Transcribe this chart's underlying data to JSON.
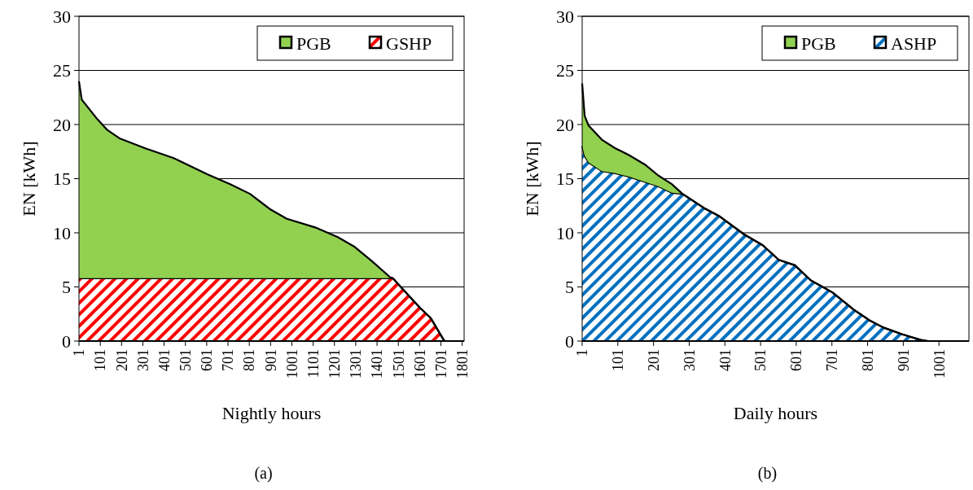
{
  "chart_data": [
    {
      "type": "area",
      "title": "(a)",
      "xlabel": "Nightly hours",
      "ylabel": "EN [kWh]",
      "stacked": true,
      "x": [
        1,
        14,
        87,
        134,
        194,
        313,
        446,
        605,
        711,
        804,
        897,
        977,
        1110,
        1216,
        1296,
        1376,
        1462,
        1475,
        1508,
        1601,
        1654,
        1714,
        1720,
        1810
      ],
      "series": [
        {
          "name": "GSHP",
          "color": "#ff0000",
          "values": [
            5.8,
            5.8,
            5.8,
            5.8,
            5.8,
            5.8,
            5.8,
            5.8,
            5.8,
            5.8,
            5.8,
            5.8,
            5.8,
            5.8,
            5.8,
            5.8,
            5.8,
            5.8,
            5.1,
            3.1,
            2.1,
            0.1,
            0,
            0
          ]
        },
        {
          "name": "PGB",
          "color": "#92d050",
          "values": [
            18.2,
            16.5,
            14.7,
            13.7,
            12.9,
            12.0,
            11.1,
            9.6,
            8.7,
            7.8,
            6.4,
            5.5,
            4.7,
            3.8,
            2.9,
            1.6,
            0.1,
            0,
            0,
            0,
            0,
            0,
            0,
            0
          ]
        }
      ],
      "xlim": [
        1,
        1810
      ],
      "xticks": [
        1,
        101,
        201,
        301,
        401,
        501,
        601,
        701,
        801,
        901,
        1001,
        1101,
        1201,
        1301,
        1401,
        1501,
        1601,
        1701,
        1801
      ],
      "ylim": [
        0,
        30
      ],
      "yticks": [
        0,
        5,
        10,
        15,
        20,
        25,
        30
      ],
      "grid": "y",
      "legend": "top right"
    },
    {
      "type": "area",
      "title": "(b)",
      "xlabel": "Daily hours",
      "ylabel": "EN [kWh]",
      "stacked": true,
      "x": [
        1,
        8,
        19,
        56,
        94,
        131,
        177,
        214,
        252,
        282,
        342,
        387,
        455,
        507,
        552,
        597,
        642,
        702,
        762,
        807,
        845,
        900,
        950,
        970,
        1085
      ],
      "series": [
        {
          "name": "ASHP",
          "color": "#0070c0",
          "values": [
            18.0,
            17.1,
            16.5,
            15.7,
            15.5,
            15.2,
            14.7,
            14.3,
            13.7,
            13.6,
            12.3,
            11.5,
            9.85,
            8.85,
            7.5,
            7.0,
            5.6,
            4.5,
            2.9,
            1.9,
            1.25,
            0.6,
            0.1,
            0,
            0
          ]
        },
        {
          "name": "PGB",
          "color": "#92d050",
          "values": [
            5.8,
            3.7,
            3.4,
            2.9,
            2.3,
            2.0,
            1.6,
            1.0,
            0.8,
            0,
            0,
            0,
            0,
            0,
            0,
            0,
            0,
            0,
            0,
            0,
            0,
            0,
            0,
            0,
            0
          ]
        }
      ],
      "xlim": [
        1,
        1085
      ],
      "xticks": [
        1,
        101,
        201,
        301,
        401,
        501,
        601,
        701,
        801,
        901,
        1001
      ],
      "ylim": [
        0,
        30
      ],
      "yticks": [
        0,
        5,
        10,
        15,
        20,
        25,
        30
      ],
      "grid": "y",
      "legend": "top right"
    }
  ]
}
